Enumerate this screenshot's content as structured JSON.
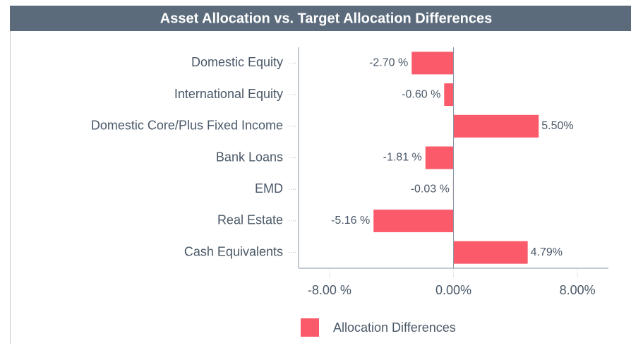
{
  "chart_data": {
    "type": "bar",
    "orientation": "horizontal",
    "title": "Asset Allocation vs. Target Allocation Differences",
    "categories": [
      "Domestic Equity",
      "International Equity",
      "Domestic Core/Plus Fixed Income",
      "Bank Loans",
      "EMD",
      "Real Estate",
      "Cash Equivalents"
    ],
    "series": [
      {
        "name": "Allocation Differences",
        "color": "#fa5a69",
        "values": [
          -2.7,
          -0.6,
          5.5,
          -1.81,
          -0.03,
          -5.16,
          4.79
        ],
        "value_labels": [
          "-2.70 %",
          "-0.60 %",
          "5.50%",
          "-1.81 %",
          "-0.03 %",
          "-5.16 %",
          "4.79%"
        ]
      }
    ],
    "xlim": [
      -10,
      10
    ],
    "xticks": [
      {
        "value": -8,
        "label": "-8.00 %"
      },
      {
        "value": 0,
        "label": "0.00%"
      },
      {
        "value": 8,
        "label": "8.00%"
      }
    ],
    "legend": "bottom"
  }
}
